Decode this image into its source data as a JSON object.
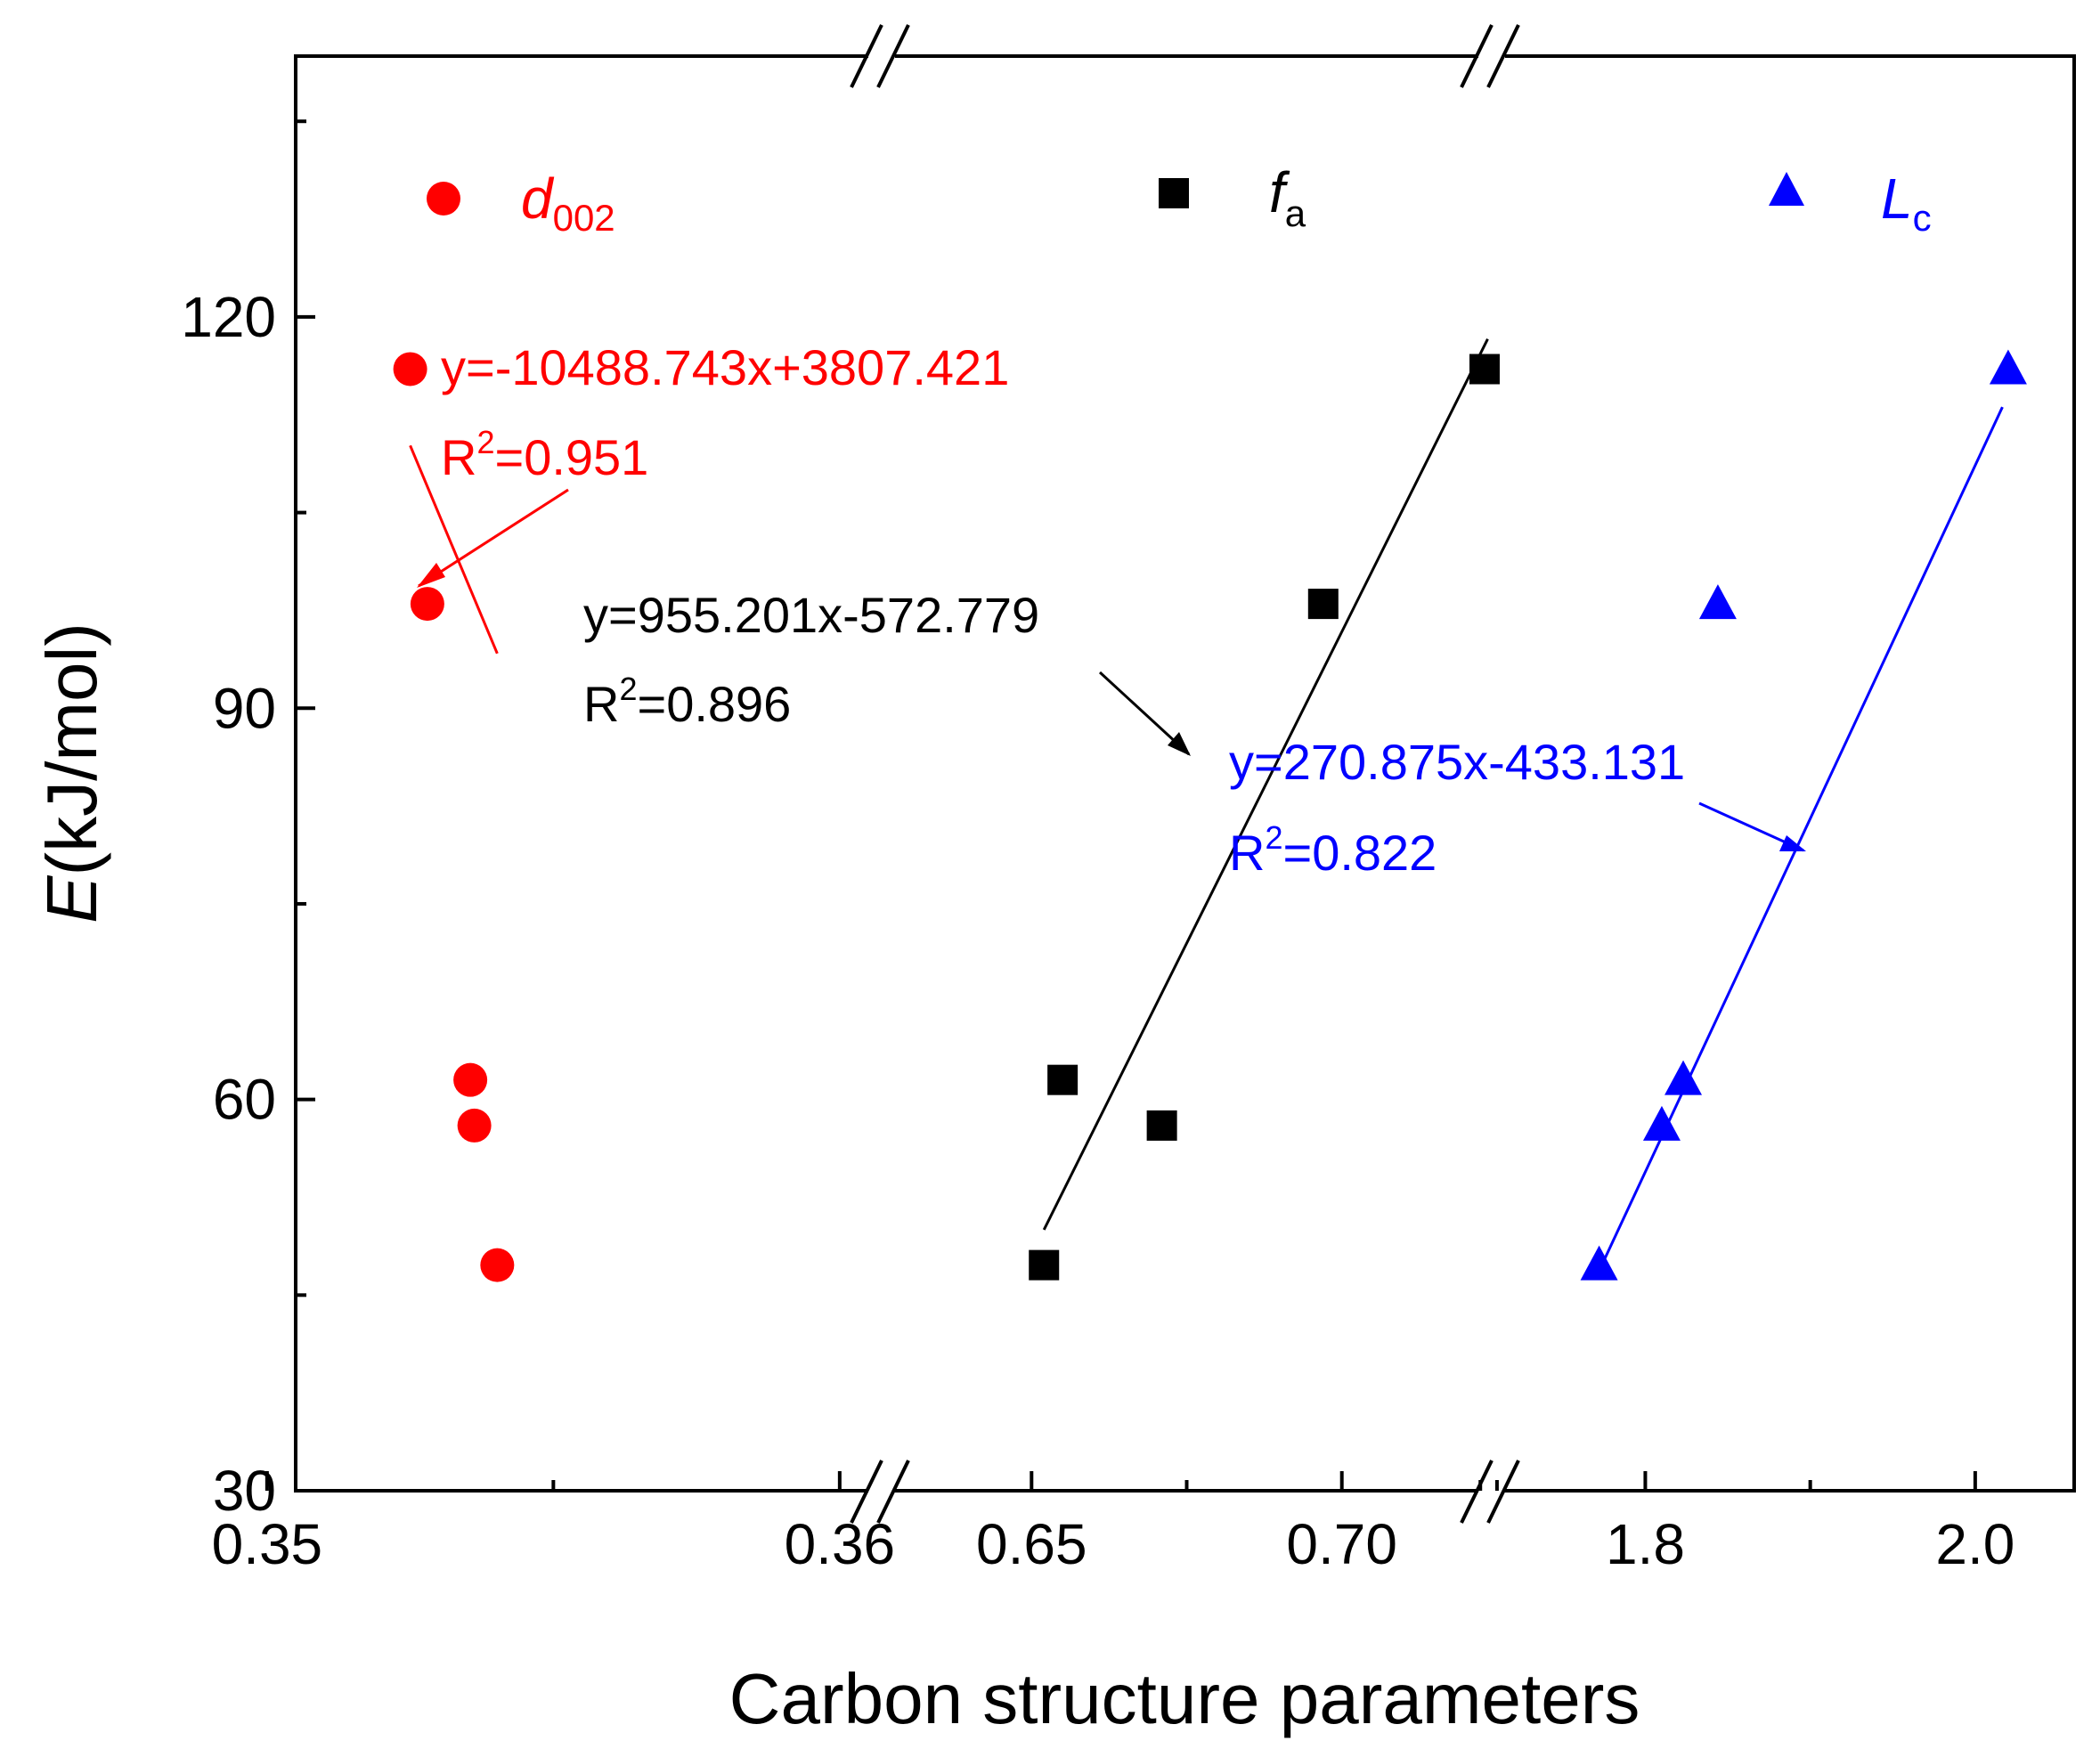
{
  "chart_data": {
    "type": "scatter",
    "xlabel": "Carbon structure parameters",
    "ylabel": {
      "symbol": "E",
      "unit": "(kJ/mol)"
    },
    "ylim": [
      30,
      140
    ],
    "yticks": [
      30,
      60,
      90,
      120
    ],
    "y_minor_ticks": [
      45,
      75,
      105,
      135
    ],
    "x_breaks": true,
    "panels": [
      {
        "name": "d002",
        "xlim": [
          0.3505,
          0.3605
        ],
        "xticks": [
          0.35,
          0.36
        ],
        "xtick_labels": [
          "0.35",
          "0.36"
        ],
        "x_minor_ticks": [
          0.355
        ]
      },
      {
        "name": "fa",
        "xlim": [
          0.628,
          0.722
        ],
        "xticks": [
          0.65,
          0.7
        ],
        "xtick_labels": [
          "0.65",
          "0.70"
        ],
        "x_minor_ticks": [
          0.675,
          0.725
        ]
      },
      {
        "name": "Lc",
        "xlim": [
          1.715,
          2.06
        ],
        "xticks": [
          1.8,
          2.0
        ],
        "xtick_labels": [
          "1.8",
          "2.0"
        ],
        "x_minor_ticks": [
          1.7,
          1.9
        ]
      }
    ],
    "series": [
      {
        "name": "d002",
        "label_main": "d",
        "label_sub": "002",
        "marker": "circle",
        "color": "#ff0000",
        "panel": 0,
        "x": [
          0.3525,
          0.3528,
          0.35355,
          0.35362,
          0.35402
        ],
        "y": [
          116,
          98,
          61.5,
          58,
          47.3
        ],
        "fit": {
          "x_range": [
            0.3525,
            0.35402
          ],
          "slope": -10488.743,
          "intercept": 3807.421
        },
        "equation": "y=-10488.743x+3807.421",
        "r2_prefix": "R",
        "r2_sup": "2",
        "r2_value": "=0.951"
      },
      {
        "name": "fa",
        "label_main": "f",
        "label_sub": "a",
        "marker": "square",
        "color": "#000000",
        "panel": 1,
        "x": [
          0.652,
          0.655,
          0.671,
          0.697,
          0.723
        ],
        "y": [
          47.3,
          61.5,
          58,
          98,
          116
        ],
        "fit": {
          "x_range": [
            0.652,
            0.7235
          ],
          "slope": 955.201,
          "intercept": -572.779
        },
        "equation": "y=955.201x-572.779",
        "r2_prefix": "R",
        "r2_sup": "2",
        "r2_value": "=0.896"
      },
      {
        "name": "Lc",
        "label_main": "L",
        "label_sub": "c",
        "marker": "triangle",
        "color": "#0000ff",
        "panel": 2,
        "x": [
          1.772,
          1.81,
          1.823,
          1.844,
          2.02
        ],
        "y": [
          47.3,
          58,
          61.5,
          98,
          116
        ],
        "fit": {
          "x_range": [
            1.772,
            2.0165
          ],
          "slope": 270.875,
          "intercept": -433.131
        },
        "equation": "y=270.875x-433.131",
        "r2_prefix": "R",
        "r2_sup": "2",
        "r2_value": "=0.822"
      }
    ]
  }
}
